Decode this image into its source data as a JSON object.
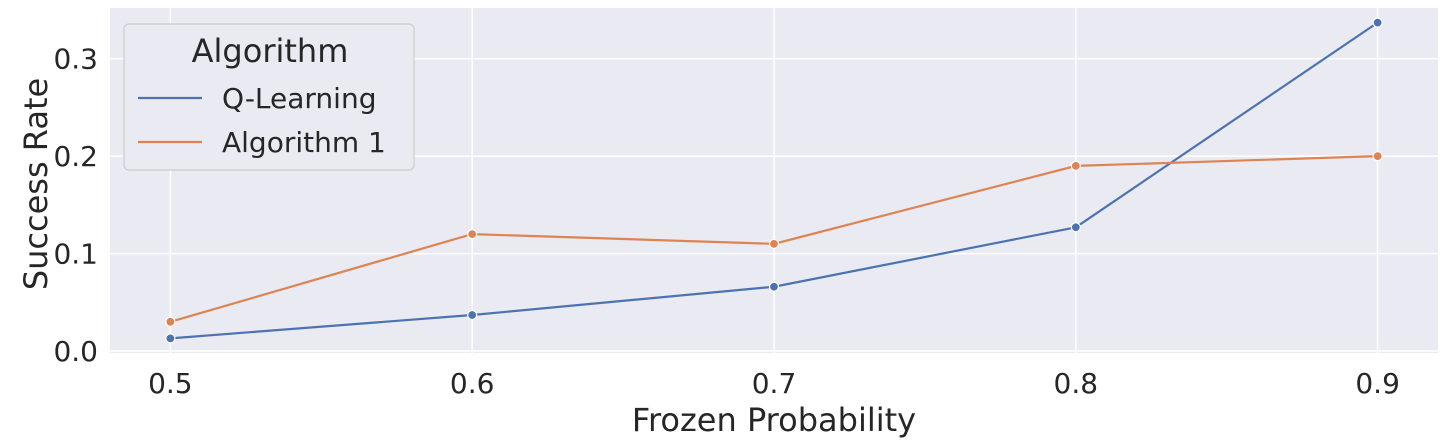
{
  "chart_data": {
    "type": "line",
    "xlabel": "Frozen Probability",
    "ylabel": "Success Rate",
    "x": [
      0.5,
      0.6,
      0.7,
      0.8,
      0.9
    ],
    "x_tick_labels": [
      "0.5",
      "0.6",
      "0.7",
      "0.8",
      "0.9"
    ],
    "y_ticks": [
      0.0,
      0.1,
      0.2,
      0.3
    ],
    "y_tick_labels": [
      "0.0",
      "0.1",
      "0.2",
      "0.3"
    ],
    "xlim": [
      0.48,
      0.92
    ],
    "ylim": [
      -0.002,
      0.352
    ],
    "grid": true,
    "background": "#eaeaf2",
    "legend": {
      "title": "Algorithm",
      "placement": "top-left"
    },
    "series": [
      {
        "name": "Q-Learning",
        "color": "#4c72b0",
        "values": [
          0.013,
          0.037,
          0.066,
          0.127,
          0.337
        ]
      },
      {
        "name": "Algorithm 1",
        "color": "#dd8452",
        "values": [
          0.03,
          0.12,
          0.11,
          0.19,
          0.2
        ]
      }
    ]
  }
}
